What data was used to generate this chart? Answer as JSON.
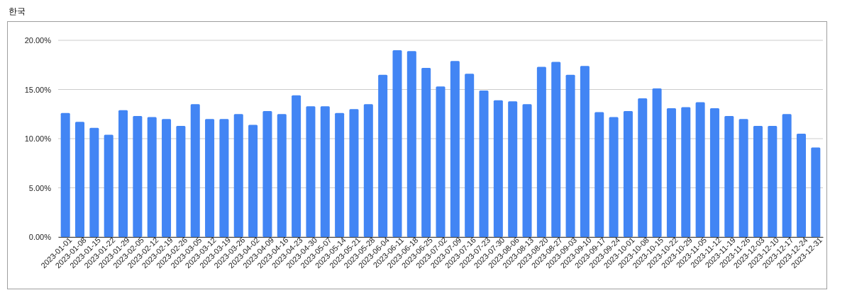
{
  "chart_data": {
    "type": "bar",
    "title": "한국",
    "categories": [
      "2023-01-01",
      "2023-01-08",
      "2023-01-15",
      "2023-01-22",
      "2023-01-29",
      "2023-02-05",
      "2023-02-12",
      "2023-02-19",
      "2023-02-26",
      "2023-03-05",
      "2023-03-12",
      "2023-03-19",
      "2023-03-26",
      "2023-04-02",
      "2023-04-09",
      "2023-04-16",
      "2023-04-23",
      "2023-04-30",
      "2023-05-07",
      "2023-05-14",
      "2023-05-21",
      "2023-05-28",
      "2023-06-04",
      "2023-06-11",
      "2023-06-18",
      "2023-06-25",
      "2023-07-02",
      "2023-07-09",
      "2023-07-16",
      "2023-07-23",
      "2023-07-30",
      "2023-08-06",
      "2023-08-13",
      "2023-08-20",
      "2023-08-27",
      "2023-09-03",
      "2023-09-10",
      "2023-09-17",
      "2023-09-24",
      "2023-10-01",
      "2023-10-08",
      "2023-10-15",
      "2023-10-22",
      "2023-10-29",
      "2023-11-05",
      "2023-11-12",
      "2023-11-19",
      "2023-11-26",
      "2023-12-03",
      "2023-12-10",
      "2023-12-17",
      "2023-12-24",
      "2023-12-31"
    ],
    "values": [
      12.6,
      11.7,
      11.1,
      10.4,
      12.9,
      12.3,
      12.2,
      12.0,
      11.3,
      13.5,
      12.0,
      12.0,
      12.5,
      11.4,
      12.8,
      12.5,
      14.4,
      13.3,
      13.3,
      12.6,
      13.0,
      13.5,
      16.5,
      19.0,
      18.9,
      17.2,
      15.3,
      17.9,
      16.6,
      14.9,
      13.9,
      13.8,
      13.5,
      17.3,
      17.8,
      16.5,
      17.4,
      12.7,
      12.2,
      12.8,
      14.1,
      15.1,
      13.1,
      13.2,
      13.7,
      13.1,
      12.3,
      12.0,
      11.3,
      11.3,
      12.5,
      10.5,
      9.1
    ],
    "color": "#4285f4",
    "ylim": [
      0,
      20
    ],
    "yticks": [
      {
        "value": 0,
        "label": "0.00%"
      },
      {
        "value": 5,
        "label": "5.00%"
      },
      {
        "value": 10,
        "label": "10.00%"
      },
      {
        "value": 15,
        "label": "15.00%"
      },
      {
        "value": 20,
        "label": "20.00%"
      }
    ],
    "grid": "y"
  }
}
